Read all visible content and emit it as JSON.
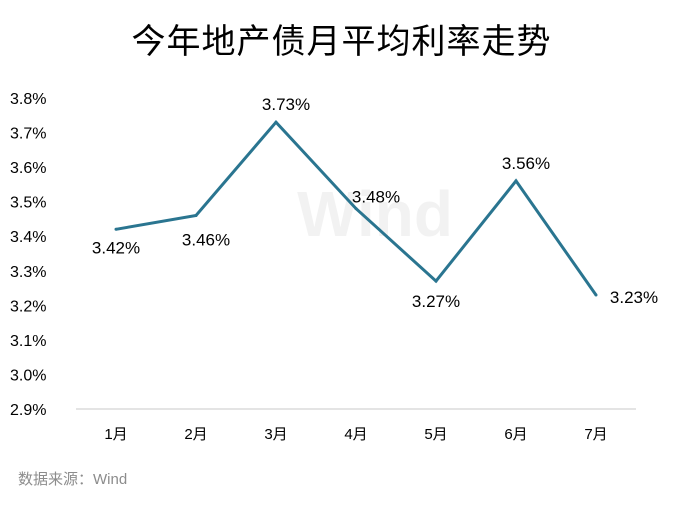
{
  "chart_data": {
    "type": "line",
    "title": "今年地产债月平均利率走势",
    "source": "数据来源：Wind",
    "watermark": "Wind",
    "categories": [
      "1月",
      "2月",
      "3月",
      "4月",
      "5月",
      "6月",
      "7月"
    ],
    "series": [
      {
        "values": [
          3.42,
          3.46,
          3.73,
          3.48,
          3.27,
          3.56,
          3.23
        ],
        "labels": [
          "3.42%",
          "3.46%",
          "3.73%",
          "3.48%",
          "3.27%",
          "3.56%",
          "3.23%"
        ],
        "color": "#2a7590"
      }
    ],
    "ylim": [
      2.9,
      3.8
    ],
    "yticks": [
      "2.9%",
      "3.0%",
      "3.1%",
      "3.2%",
      "3.3%",
      "3.4%",
      "3.5%",
      "3.6%",
      "3.7%",
      "3.8%"
    ],
    "xlabel": "",
    "ylabel": "",
    "grid": false,
    "legend": "none"
  }
}
